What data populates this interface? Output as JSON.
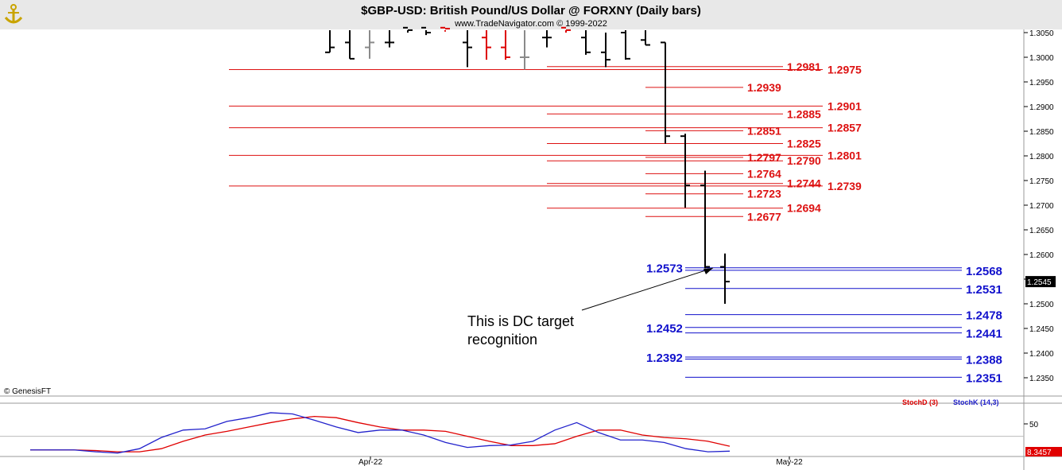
{
  "header": {
    "title": "$GBP-USD:  British Pound/US Dollar @ FORXNY  (Daily bars)",
    "subtitle": "www.TradeNavigator.com © 1999-2022"
  },
  "copyright": "© GenesisFT",
  "annotation": [
    "This is DC target",
    "recognition"
  ],
  "colors": {
    "red_level": "#dd1111",
    "blue_level": "#1111cc",
    "bar_black": "#000000",
    "bar_red": "#dd0000",
    "bar_gray": "#8a8a8a",
    "stochD": "#e00000",
    "stochK": "#2222cc",
    "header_bg": "#e8e8e8"
  },
  "chart_data": {
    "type": "ohlc-bars",
    "instrument": "$GBP-USD",
    "ylim": [
      1.23,
      1.305
    ],
    "price_ticks": [
      "1.3050",
      "1.3000",
      "1.2950",
      "1.2900",
      "1.2850",
      "1.2800",
      "1.2750",
      "1.2700",
      "1.2650",
      "1.2600",
      "1.2550",
      "1.2500",
      "1.2450",
      "1.2400",
      "1.2350"
    ],
    "last_price_label": "1.2545",
    "x_labels": [
      "Apr-22",
      "May-22"
    ],
    "bars_visible": [
      {
        "o": 1.301,
        "h": 1.306,
        "l": 1.301,
        "c": 1.302,
        "color": "black"
      },
      {
        "o": 1.303,
        "h": 1.306,
        "l": 1.2997,
        "c": 1.2997,
        "color": "black"
      },
      {
        "o": 1.302,
        "h": 1.306,
        "l": 1.2997,
        "c": 1.303,
        "color": "gray"
      },
      {
        "o": 1.303,
        "h": 1.306,
        "l": 1.302,
        "c": 1.303,
        "color": "black"
      },
      {
        "o": 1.306,
        "h": 1.3062,
        "l": 1.305,
        "c": 1.3055,
        "color": "black"
      },
      {
        "o": 1.306,
        "h": 1.3062,
        "l": 1.3045,
        "c": 1.305,
        "color": "black"
      },
      {
        "o": 1.306,
        "h": 1.3062,
        "l": 1.3052,
        "c": 1.3058,
        "color": "red"
      },
      {
        "o": 1.303,
        "h": 1.3062,
        "l": 1.298,
        "c": 1.302,
        "color": "black"
      },
      {
        "o": 1.304,
        "h": 1.3062,
        "l": 1.2995,
        "c": 1.302,
        "color": "red"
      },
      {
        "o": 1.302,
        "h": 1.3062,
        "l": 1.2995,
        "c": 1.3,
        "color": "red"
      },
      {
        "o": 1.3,
        "h": 1.3062,
        "l": 1.2975,
        "c": 1.3,
        "color": "gray"
      },
      {
        "o": 1.304,
        "h": 1.3062,
        "l": 1.302,
        "c": 1.304,
        "color": "black"
      },
      {
        "o": 1.306,
        "h": 1.3062,
        "l": 1.305,
        "c": 1.3055,
        "color": "red"
      },
      {
        "o": 1.304,
        "h": 1.3062,
        "l": 1.3005,
        "c": 1.301,
        "color": "black"
      },
      {
        "o": 1.301,
        "h": 1.305,
        "l": 1.298,
        "c": 1.2995,
        "color": "black"
      },
      {
        "o": 1.305,
        "h": 1.3062,
        "l": 1.2995,
        "c": 1.2997,
        "color": "black"
      },
      {
        "o": 1.3035,
        "h": 1.3062,
        "l": 1.3025,
        "c": 1.3025,
        "color": "black"
      },
      {
        "o": 1.303,
        "h": 1.303,
        "l": 1.2825,
        "c": 1.284,
        "color": "black"
      },
      {
        "o": 1.284,
        "h": 1.2845,
        "l": 1.2695,
        "c": 1.274,
        "color": "black"
      },
      {
        "o": 1.274,
        "h": 1.277,
        "l": 1.2572,
        "c": 1.2575,
        "color": "black"
      },
      {
        "o": 1.2575,
        "h": 1.2602,
        "l": 1.25,
        "c": 1.2545,
        "color": "black"
      }
    ],
    "red_levels": [
      {
        "value": 1.2981,
        "label": "1.2981"
      },
      {
        "value": 1.2975,
        "label": "1.2975"
      },
      {
        "value": 1.2939,
        "label": "1.2939"
      },
      {
        "value": 1.2901,
        "label": "1.2901"
      },
      {
        "value": 1.2885,
        "label": "1.2885"
      },
      {
        "value": 1.2857,
        "label": "1.2857"
      },
      {
        "value": 1.2851,
        "label": "1.2851"
      },
      {
        "value": 1.2825,
        "label": "1.2825"
      },
      {
        "value": 1.2801,
        "label": "1.2801"
      },
      {
        "value": 1.2797,
        "label": "1.2797"
      },
      {
        "value": 1.279,
        "label": "1.2790"
      },
      {
        "value": 1.2764,
        "label": "1.2764"
      },
      {
        "value": 1.2744,
        "label": "1.2744"
      },
      {
        "value": 1.2739,
        "label": "1.2739"
      },
      {
        "value": 1.2723,
        "label": "1.2723"
      },
      {
        "value": 1.2694,
        "label": "1.2694"
      },
      {
        "value": 1.2677,
        "label": "1.2677"
      }
    ],
    "blue_levels": [
      {
        "value": 1.2573,
        "label": "1.2573"
      },
      {
        "value": 1.2568,
        "label": "1.2568"
      },
      {
        "value": 1.2531,
        "label": "1.2531"
      },
      {
        "value": 1.2478,
        "label": "1.2478"
      },
      {
        "value": 1.2452,
        "label": "1.2452"
      },
      {
        "value": 1.2441,
        "label": "1.2441"
      },
      {
        "value": 1.2392,
        "label": "1.2392"
      },
      {
        "value": 1.2388,
        "label": "1.2388"
      },
      {
        "value": 1.2351,
        "label": "1.2351"
      }
    ],
    "indicator": {
      "legend": [
        "StochD (3)",
        "StochK (14,3)"
      ],
      "tick": "50",
      "last_value_label": "8.3457",
      "ylim": [
        0,
        100
      ],
      "stochD": [
        8,
        8,
        8,
        7,
        5,
        5,
        10,
        22,
        32,
        38,
        45,
        52,
        58,
        62,
        60,
        52,
        45,
        40,
        40,
        38,
        30,
        22,
        15,
        15,
        18,
        30,
        40,
        40,
        32,
        28,
        26,
        22,
        14
      ],
      "stochK": [
        8,
        8,
        8,
        5,
        3,
        10,
        28,
        40,
        42,
        54,
        60,
        68,
        66,
        56,
        45,
        36,
        40,
        40,
        32,
        20,
        12,
        15,
        16,
        22,
        40,
        52,
        36,
        24,
        24,
        20,
        10,
        5,
        6
      ]
    }
  }
}
